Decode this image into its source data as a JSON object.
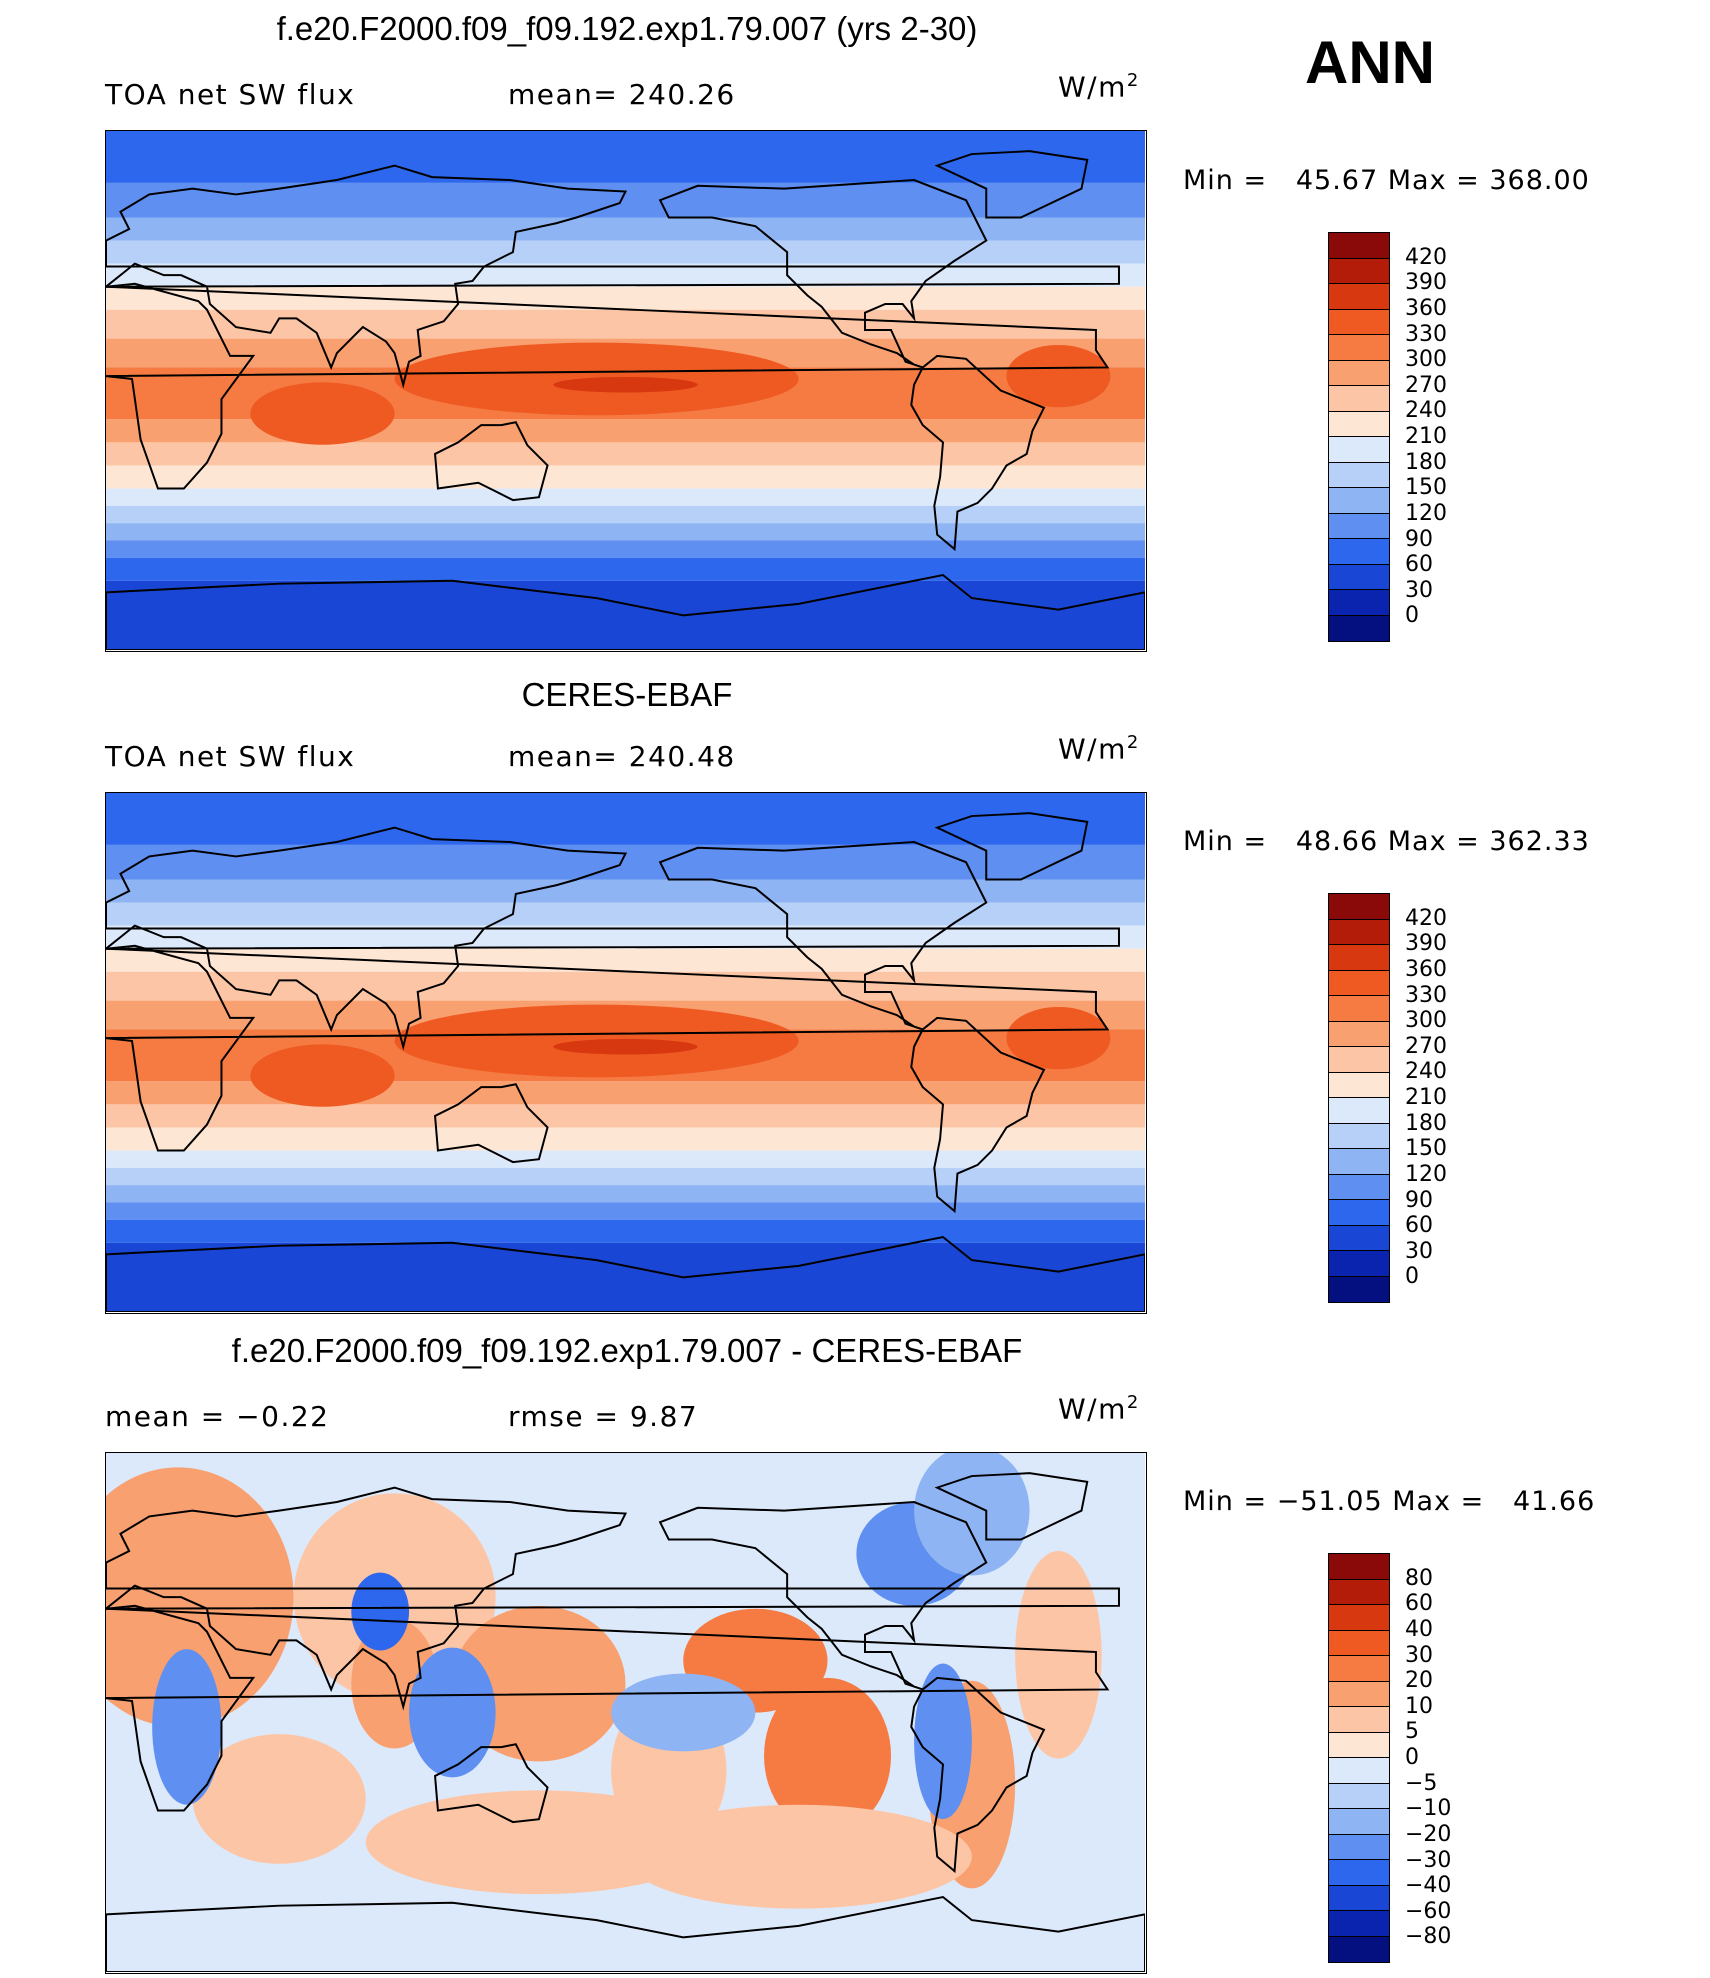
{
  "season": "ANN",
  "units_base": "W/m",
  "units_exp": "2",
  "panels": [
    {
      "title": "f.e20.F2000.f09_f09.192.exp1.79.007 (yrs 2-30)",
      "left_text": "TOA net SW flux",
      "mid_text": "mean= 240.26",
      "minmax": "Min =   45.67 Max = 368.00",
      "kind": "abs"
    },
    {
      "title": "CERES-EBAF",
      "left_text": "TOA net SW flux",
      "mid_text": "mean= 240.48",
      "minmax": "Min =   48.66 Max = 362.33",
      "kind": "abs"
    },
    {
      "title": "f.e20.F2000.f09_f09.192.exp1.79.007 - CERES-EBAF",
      "left_text": "mean =   −0.22",
      "mid_text": "rmse =    9.87",
      "minmax": "Min = −51.05 Max =   41.66",
      "kind": "diff"
    }
  ],
  "colorbars": {
    "abs": {
      "labels": [
        "420",
        "390",
        "360",
        "330",
        "300",
        "270",
        "240",
        "210",
        "180",
        "150",
        "120",
        "90",
        "60",
        "30",
        "0"
      ],
      "colors": [
        "#8a0a0a",
        "#b41c0a",
        "#d83810",
        "#ee5a22",
        "#f57b43",
        "#f9a070",
        "#fcc6a6",
        "#fde6d4",
        "#dce9fb",
        "#b6d0f7",
        "#8fb4f3",
        "#5f8ff0",
        "#2d67ee",
        "#1a46d6",
        "#0a24b0",
        "#051080"
      ]
    },
    "diff": {
      "labels": [
        "80",
        "60",
        "40",
        "30",
        "20",
        "10",
        "5",
        "0",
        "−5",
        "−10",
        "−20",
        "−30",
        "−40",
        "−60",
        "−80"
      ],
      "colors": [
        "#8a0a0a",
        "#b41c0a",
        "#d83810",
        "#ee5a22",
        "#f57b43",
        "#f9a070",
        "#fcc6a6",
        "#fde6d4",
        "#dce9fb",
        "#b6d0f7",
        "#8fb4f3",
        "#5f8ff0",
        "#2d67ee",
        "#1a46d6",
        "#0a24b0",
        "#051080"
      ]
    }
  }
}
